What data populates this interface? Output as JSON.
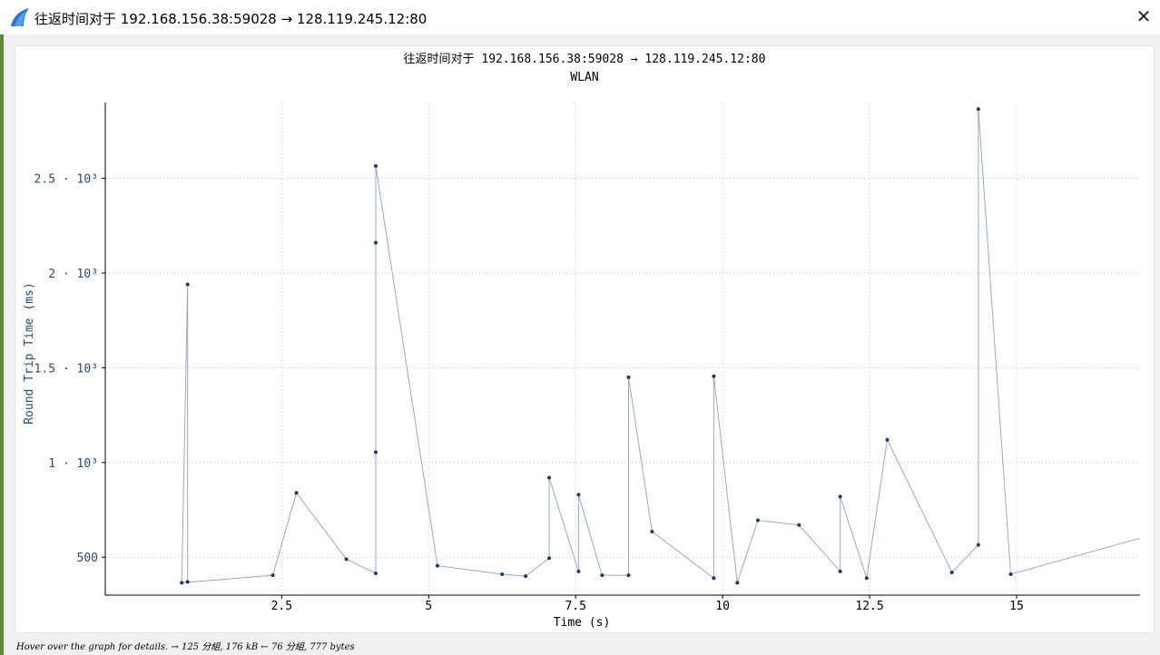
{
  "window": {
    "title": "往返时间对于 192.168.156.38:59028 → 128.119.245.12:80",
    "close_label": "✕",
    "icon": "wireshark-fin-icon"
  },
  "status_text": "Hover over the graph for details. → 125 分組, 176 kB ← 76 分組, 777 bytes",
  "colors": {
    "line": "#99aabf",
    "marker": "#1f3a66",
    "grid": "#c8c8c8",
    "axis": "#000000",
    "ylabel": "#2b4a73"
  },
  "chart_data": {
    "type": "scatter",
    "title": "往返时间对于 192.168.156.38:59028 → 128.119.245.12:80",
    "subtitle": "WLAN",
    "xlabel": "Time (s)",
    "ylabel": "Round Trip Time (ms)",
    "xlim": [
      -0.5,
      17.1
    ],
    "ylim": [
      300,
      2900
    ],
    "x_ticks": [
      2.5,
      5,
      7.5,
      10,
      12.5,
      15
    ],
    "x_tick_labels": [
      "2.5",
      "5",
      "7.5",
      "10",
      "12.5",
      "15"
    ],
    "y_ticks": [
      500,
      1000,
      1500,
      2000,
      2500
    ],
    "y_tick_labels": [
      "500",
      "1 · 10³",
      "1.5 · 10³",
      "2 · 10³",
      "2.5 · 10³"
    ],
    "grid": true,
    "points": [
      [
        0.9,
        370
      ],
      [
        0.9,
        1940
      ],
      [
        0.8,
        365
      ],
      [
        2.35,
        405
      ],
      [
        2.75,
        840
      ],
      [
        3.6,
        490
      ],
      [
        4.1,
        415
      ],
      [
        4.1,
        1055
      ],
      [
        4.1,
        2160
      ],
      [
        4.1,
        2565
      ],
      [
        5.15,
        455
      ],
      [
        6.25,
        410
      ],
      [
        6.65,
        400
      ],
      [
        7.05,
        495
      ],
      [
        7.05,
        920
      ],
      [
        7.55,
        425
      ],
      [
        7.55,
        830
      ],
      [
        7.95,
        405
      ],
      [
        8.4,
        405
      ],
      [
        8.4,
        1450
      ],
      [
        8.8,
        635
      ],
      [
        9.85,
        390
      ],
      [
        9.85,
        1455
      ],
      [
        10.25,
        365
      ],
      [
        10.6,
        695
      ],
      [
        11.3,
        670
      ],
      [
        12.0,
        425
      ],
      [
        12.0,
        820
      ],
      [
        12.45,
        390
      ],
      [
        12.8,
        1120
      ],
      [
        13.9,
        420
      ],
      [
        14.35,
        565
      ],
      [
        14.35,
        2865
      ],
      [
        14.9,
        410
      ],
      [
        17.1,
        600
      ]
    ]
  }
}
